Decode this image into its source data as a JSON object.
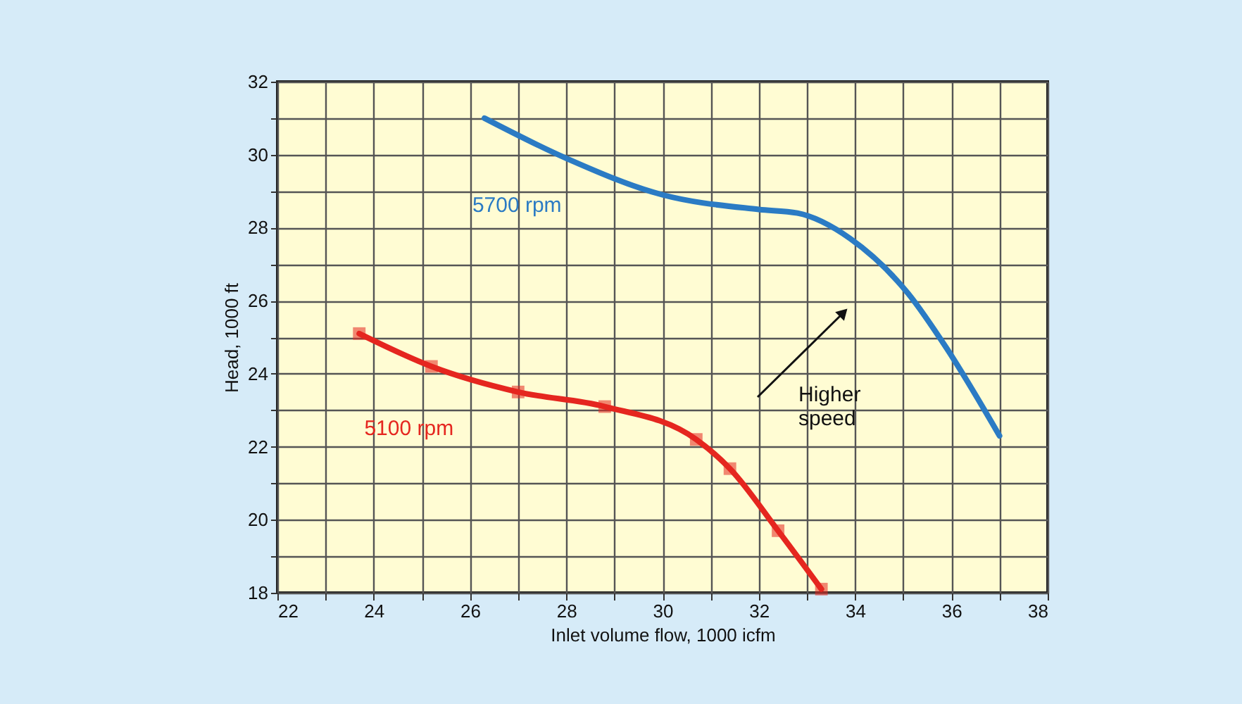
{
  "chart_data": {
    "type": "line",
    "xlabel": "Inlet volume flow, 1000 icfm",
    "ylabel": "Head, 1000 ft",
    "series": [
      {
        "name": "5700 rpm",
        "color": "#2b7bc4",
        "marker": "none",
        "x": [
          26.3,
          28.0,
          30.0,
          32.0,
          32.8,
          33.9,
          35.1,
          35.9,
          37.0
        ],
        "values": [
          31.0,
          29.9,
          28.9,
          28.5,
          28.4,
          27.7,
          26.2,
          24.7,
          22.3
        ]
      },
      {
        "name": "5100 rpm",
        "color": "#e5261f",
        "marker": "square",
        "x": [
          23.7,
          25.2,
          27.0,
          28.8,
          30.7,
          31.4,
          32.4,
          33.3
        ],
        "values": [
          25.1,
          24.2,
          23.5,
          23.1,
          22.2,
          21.4,
          19.7,
          18.1
        ]
      }
    ],
    "annotations": [
      "Higher speed"
    ],
    "xlim": [
      22,
      38
    ],
    "ylim": [
      18,
      32
    ],
    "xticks": [
      22,
      {
        "value": 23,
        "label": null
      },
      24,
      {
        "value": 25,
        "label": null
      },
      26,
      {
        "value": 27,
        "label": null
      },
      28,
      {
        "value": 29,
        "label": null
      },
      30,
      {
        "value": 31,
        "label": null
      },
      32,
      {
        "value": 33,
        "label": null
      },
      34,
      {
        "value": 35,
        "label": null
      },
      36,
      {
        "value": 37,
        "label": null
      },
      38
    ],
    "yticks": [
      18,
      {
        "value": 19,
        "label": null
      },
      20,
      {
        "value": 21,
        "label": null
      },
      22,
      {
        "value": 23,
        "label": null
      },
      24,
      {
        "value": 25,
        "label": null
      },
      26,
      {
        "value": 27,
        "label": null
      },
      28,
      {
        "value": 29,
        "label": null
      },
      30,
      {
        "value": 31,
        "label": null
      },
      32
    ],
    "grid": true
  }
}
